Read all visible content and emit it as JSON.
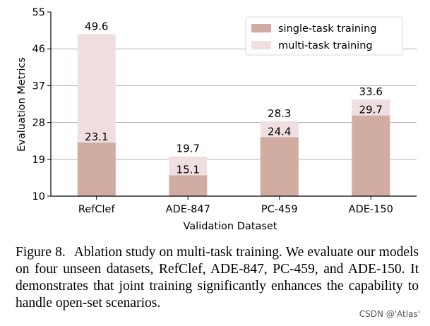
{
  "chart_data": {
    "type": "bar",
    "title": "",
    "xlabel": "Validation Dataset",
    "ylabel": "Evaluation Metrics",
    "ylim": [
      10,
      55
    ],
    "yticks": [
      10,
      19,
      28,
      37,
      46,
      55
    ],
    "grid": "horizontal",
    "stacked_overlay": true,
    "legend_position": "top-right",
    "categories": [
      "RefClef",
      "ADE-847",
      "PC-459",
      "ADE-150"
    ],
    "series": [
      {
        "name": "single-task training",
        "values": [
          23.1,
          15.1,
          24.4,
          29.7
        ],
        "color": "#d1aca3"
      },
      {
        "name": "multi-task training",
        "values": [
          49.6,
          19.7,
          28.3,
          33.6
        ],
        "color": "#efdfe0"
      }
    ]
  },
  "caption": {
    "label": "Figure 8.",
    "text": "Ablation study on multi-task training. We evaluate our models on four unseen datasets, RefClef, ADE-847, PC-459, and ADE-150. It demonstrates that joint training significantly enhances the capability to handle open-set scenarios."
  },
  "watermark": "CSDN @'Atlas'"
}
